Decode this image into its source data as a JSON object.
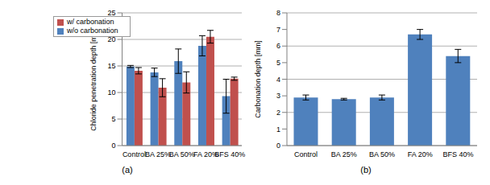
{
  "chart_data": [
    {
      "type": "bar",
      "caption": "(a)",
      "ylabel": "Chloride penetration depth [mm]",
      "categories": [
        "Control",
        "BA 25%",
        "BA 50%",
        "FA 20%",
        "BFS 40%"
      ],
      "series": [
        {
          "name": "w/o carbonation",
          "color": "#4f81bd",
          "values": [
            14.9,
            13.8,
            15.9,
            18.8,
            9.3
          ],
          "errors": [
            0.2,
            0.8,
            2.3,
            1.9,
            3.2
          ]
        },
        {
          "name": "w/ carbonation",
          "color": "#c0504d",
          "values": [
            14.1,
            10.9,
            11.9,
            20.5,
            12.6
          ],
          "errors": [
            0.6,
            1.7,
            2.0,
            1.2,
            0.3
          ]
        }
      ],
      "ylim": [
        0,
        25
      ],
      "yticks": [
        0,
        5,
        10,
        15,
        20,
        25
      ],
      "grid": true,
      "legend": "upper left"
    },
    {
      "type": "bar",
      "caption": "(b)",
      "ylabel": "Carbonation depth [mm]",
      "categories": [
        "Control",
        "BA 25%",
        "BA 50%",
        "FA 20%",
        "BFS 40%"
      ],
      "values": [
        2.9,
        2.8,
        2.9,
        6.7,
        5.4
      ],
      "errors": [
        0.15,
        0.05,
        0.15,
        0.3,
        0.4
      ],
      "color": "#4f81bd",
      "ylim": [
        0,
        8
      ],
      "yticks": [
        0,
        1,
        2,
        3,
        4,
        5,
        6,
        7,
        8
      ],
      "grid": true
    }
  ]
}
